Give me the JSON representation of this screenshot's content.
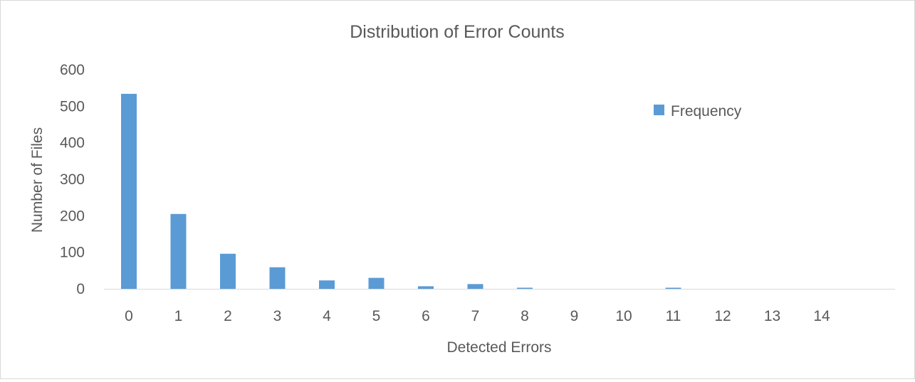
{
  "chart_data": {
    "type": "bar",
    "title": "Distribution of Error Counts",
    "xlabel": "Detected Errors",
    "ylabel": "Number of Files",
    "categories": [
      "0",
      "1",
      "2",
      "3",
      "4",
      "5",
      "6",
      "7",
      "8",
      "9",
      "10",
      "11",
      "12",
      "13",
      "14"
    ],
    "series": [
      {
        "name": "Frequency",
        "values": [
          534,
          205,
          96,
          59,
          23,
          30,
          7,
          13,
          3,
          0,
          0,
          3,
          0,
          0,
          0
        ],
        "color": "#5b9bd5"
      }
    ],
    "ylim": [
      0,
      600
    ],
    "yticks": [
      0,
      100,
      200,
      300,
      400,
      500,
      600
    ],
    "grid": false,
    "legend_position": "top-right"
  }
}
